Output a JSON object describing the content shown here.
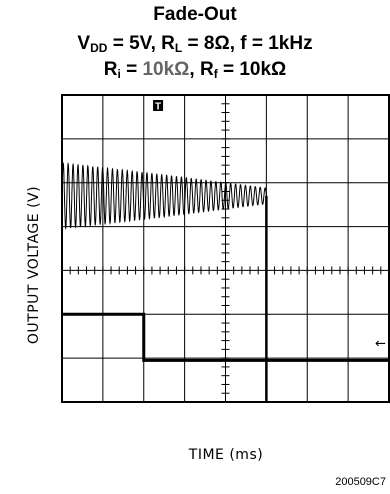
{
  "title": {
    "line1": "Fade-Out",
    "line2": {
      "vdd_main": "V",
      "vdd_sub": "DD",
      "vdd_val": " = 5V, ",
      "rl_main": "R",
      "rl_sub": "L",
      "rl_val": " = 8Ω, f = 1kHz"
    },
    "line3": {
      "ri_main": "R",
      "ri_sub": "i",
      "ri_eq": " = ",
      "ri_val": "10kΩ",
      "sep": ", ",
      "rf_main": "R",
      "rf_sub": "f",
      "rf_val": " = 10kΩ"
    }
  },
  "figure_id": "200509C7",
  "chart_data": {
    "type": "line",
    "title": "Fade-Out",
    "xlabel": "TIME (ms)",
    "ylabel": "OUTPUT VOLTAGE (V)",
    "grid": true,
    "divisions": {
      "x": 8,
      "y": 7
    },
    "series": [
      {
        "values_description_only": "",
        "x_div": [
          0,
          2.3,
          5.0
        ],
        "amplitude_div": [
          0.75,
          0.5,
          0.18
        ]
      },
      {
        "x_div": [
          0,
          2.0,
          2.0,
          8.0
        ],
        "y_div": [
          5.0,
          5.0,
          6.05,
          6.05
        ]
      },
      {
        "x_div": [
          5.0,
          5.0
        ],
        "y_div": [
          2.3,
          7.0
        ]
      }
    ],
    "markers": {
      "trigger": "T",
      "ground_arrow": "←"
    },
    "colors": {
      "trace": "#000000",
      "grid": "#000000",
      "background": "#ffffff"
    }
  }
}
